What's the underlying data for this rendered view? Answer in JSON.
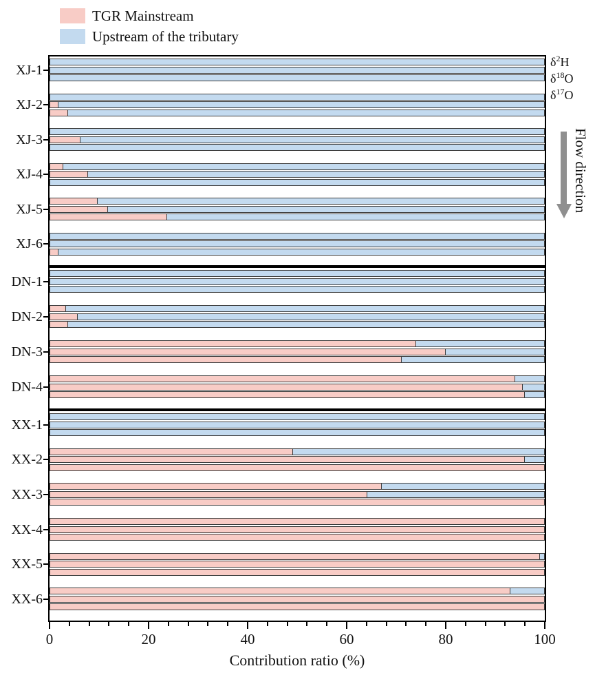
{
  "legend": {
    "items": [
      {
        "label": "TGR Mainstream",
        "color": "#f8ccc6"
      },
      {
        "label": "Upstream of the tributary",
        "color": "#c3daef"
      }
    ]
  },
  "right_annotations": {
    "isotopes": [
      {
        "delta": "δ",
        "sup": "2",
        "base": "H"
      },
      {
        "delta": "δ",
        "sup": "18",
        "base": "O"
      },
      {
        "delta": "δ",
        "sup": "17",
        "base": "O"
      }
    ],
    "flow_label": "Flow direction"
  },
  "axis": {
    "title": "Contribution ratio (%)",
    "min": 0,
    "max": 100,
    "major_ticks": [
      0,
      20,
      40,
      60,
      80,
      100
    ],
    "minor_step": 4
  },
  "chart_data": {
    "type": "bar",
    "orientation": "horizontal",
    "stacked": true,
    "title": "",
    "xlabel": "Contribution ratio (%)",
    "xlim": [
      0,
      100
    ],
    "series_names": [
      "TGR Mainstream",
      "Upstream of the tributary"
    ],
    "bars_per_site": [
      "δ2H",
      "δ18O",
      "δ17O"
    ],
    "colors": {
      "tgr_mainstream": "#f8ccc6",
      "upstream": "#c3daef"
    },
    "panels": [
      {
        "name": "XJ",
        "sites": [
          {
            "label": "XJ-1",
            "tgr_mainstream": [
              0,
              0,
              0
            ],
            "upstream": [
              100,
              100,
              100
            ]
          },
          {
            "label": "XJ-2",
            "tgr_mainstream": [
              0,
              1.5,
              3.5
            ],
            "upstream": [
              100,
              98.5,
              96.5
            ]
          },
          {
            "label": "XJ-3",
            "tgr_mainstream": [
              0,
              6,
              0
            ],
            "upstream": [
              100,
              94,
              100
            ]
          },
          {
            "label": "XJ-4",
            "tgr_mainstream": [
              2.5,
              7.5,
              0
            ],
            "upstream": [
              97.5,
              92.5,
              100
            ]
          },
          {
            "label": "XJ-5",
            "tgr_mainstream": [
              9.5,
              11.5,
              23.5
            ],
            "upstream": [
              90.5,
              88.5,
              76.5
            ]
          },
          {
            "label": "XJ-6",
            "tgr_mainstream": [
              0,
              0,
              1.5
            ],
            "upstream": [
              100,
              100,
              98.5
            ]
          }
        ]
      },
      {
        "name": "DN",
        "sites": [
          {
            "label": "DN-1",
            "tgr_mainstream": [
              0,
              0,
              0
            ],
            "upstream": [
              100,
              100,
              100
            ]
          },
          {
            "label": "DN-2",
            "tgr_mainstream": [
              3,
              5.5,
              3.5
            ],
            "upstream": [
              97,
              94.5,
              96.5
            ]
          },
          {
            "label": "DN-3",
            "tgr_mainstream": [
              74,
              80,
              71
            ],
            "upstream": [
              26,
              20,
              29
            ]
          },
          {
            "label": "DN-4",
            "tgr_mainstream": [
              94,
              95.5,
              96
            ],
            "upstream": [
              6,
              4.5,
              4
            ]
          }
        ]
      },
      {
        "name": "XX",
        "sites": [
          {
            "label": "XX-1",
            "tgr_mainstream": [
              0,
              0,
              0
            ],
            "upstream": [
              100,
              100,
              100
            ]
          },
          {
            "label": "XX-2",
            "tgr_mainstream": [
              49,
              96,
              100
            ],
            "upstream": [
              51,
              4,
              0
            ]
          },
          {
            "label": "XX-3",
            "tgr_mainstream": [
              67,
              64,
              100
            ],
            "upstream": [
              33,
              36,
              0
            ]
          },
          {
            "label": "XX-4",
            "tgr_mainstream": [
              100,
              100,
              100
            ],
            "upstream": [
              0,
              0,
              0
            ]
          },
          {
            "label": "XX-5",
            "tgr_mainstream": [
              99,
              100,
              100
            ],
            "upstream": [
              1,
              0,
              0
            ]
          },
          {
            "label": "XX-6",
            "tgr_mainstream": [
              93,
              100,
              100
            ],
            "upstream": [
              7,
              0,
              0
            ]
          }
        ]
      }
    ]
  }
}
